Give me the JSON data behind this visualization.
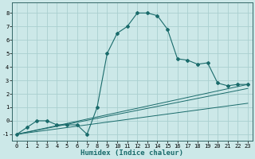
{
  "xlabel": "Humidex (Indice chaleur)",
  "ylabel": "",
  "xlim": [
    -0.5,
    23.5
  ],
  "ylim": [
    -1.5,
    8.8
  ],
  "background_color": "#cce8e8",
  "grid_color": "#aad0d0",
  "line_color": "#1a6b6b",
  "series": [
    {
      "x": [
        0,
        1,
        2,
        3,
        4,
        5,
        6,
        7,
        8,
        9,
        10,
        11,
        12,
        13,
        14,
        15,
        16,
        17,
        18,
        19,
        20,
        21,
        22,
        23
      ],
      "y": [
        -1,
        -0.5,
        0,
        0,
        -0.3,
        -0.3,
        -0.3,
        -1.0,
        1.0,
        5.0,
        6.5,
        7.0,
        8.0,
        8.0,
        7.8,
        6.8,
        4.6,
        4.5,
        4.2,
        4.3,
        2.8,
        2.6,
        2.7,
        2.7
      ]
    },
    {
      "x": [
        0,
        23
      ],
      "y": [
        -1,
        2.7
      ]
    },
    {
      "x": [
        0,
        23
      ],
      "y": [
        -1,
        2.4
      ]
    },
    {
      "x": [
        0,
        23
      ],
      "y": [
        -1,
        1.3
      ]
    }
  ],
  "xticks": [
    0,
    1,
    2,
    3,
    4,
    5,
    6,
    7,
    8,
    9,
    10,
    11,
    12,
    13,
    14,
    15,
    16,
    17,
    18,
    19,
    20,
    21,
    22,
    23
  ],
  "yticks": [
    -1,
    0,
    1,
    2,
    3,
    4,
    5,
    6,
    7,
    8
  ],
  "tick_fontsize": 5.0,
  "label_fontsize": 6.5,
  "label_fontweight": "bold"
}
